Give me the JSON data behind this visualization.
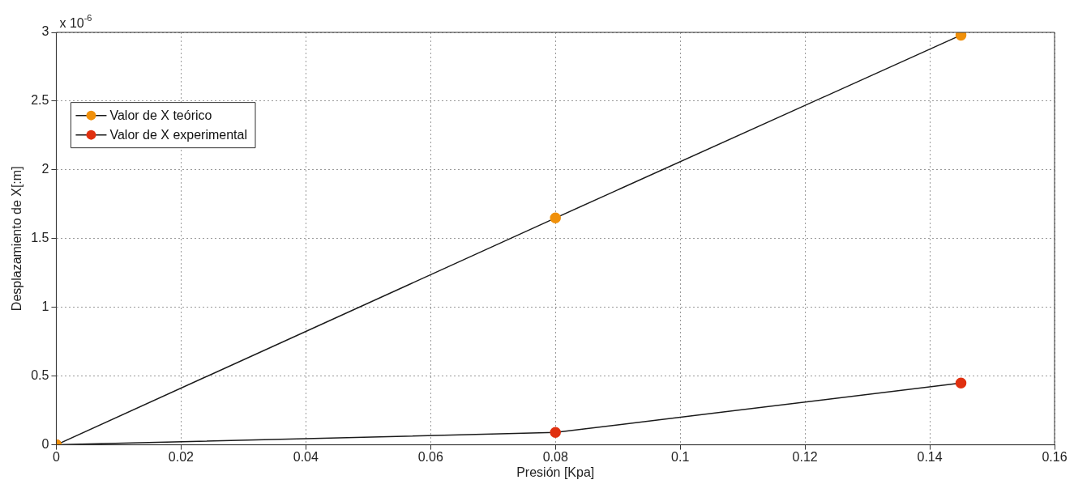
{
  "chart_data": {
    "type": "line",
    "xlabel": "Presión [Kpa]",
    "ylabel": "Desplazamiento de X[:m]",
    "annotations": [
      "x 10$^{-6}$"
    ],
    "xlim": [
      0,
      0.16
    ],
    "xticks": [
      0,
      0.02,
      0.04,
      0.06,
      0.08,
      0.1,
      0.12,
      0.14,
      0.16
    ],
    "ylim": [
      0,
      3
    ],
    "yticks": [
      0,
      0.5,
      1,
      1.5,
      2,
      2.5,
      3
    ],
    "grid": true,
    "legend": "left",
    "marker": "circle",
    "line_style": "solid",
    "series": [
      {
        "name": "Valor de X teórico",
        "color": "#f0900a",
        "x": [
          0,
          0.08,
          0.145
        ],
        "values": [
          0,
          1.65,
          2.98
        ]
      },
      {
        "name": "Valor de X experimental",
        "color": "#e03010",
        "x": [
          0,
          0.08,
          0.145
        ],
        "values": [
          0,
          0.09,
          0.45
        ]
      }
    ]
  }
}
